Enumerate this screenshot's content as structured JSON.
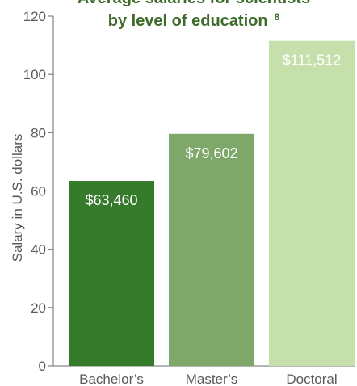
{
  "chart_data": {
    "type": "bar",
    "title_line1": "Average salaries for scientists",
    "title_line2": "by level of education",
    "title_footnote": "8",
    "xlabel": "",
    "ylabel": "Salary in U.S. dollars",
    "ylim": [
      0,
      120
    ],
    "yticks": [
      0,
      20,
      40,
      60,
      80,
      100,
      120
    ],
    "ytick_labels": [
      "0",
      "20",
      "40",
      "60",
      "80",
      "100",
      "120"
    ],
    "categories": [
      "Bachelor’s",
      "Master’s",
      "Doctoral"
    ],
    "values": [
      63.46,
      79.602,
      111.512
    ],
    "data_labels": [
      "$63,460",
      "$79,602",
      "$111,512"
    ],
    "bar_colors": [
      "#367a2c",
      "#7ea86a",
      "#c6e0ab"
    ],
    "grid": false,
    "legend": "none"
  }
}
